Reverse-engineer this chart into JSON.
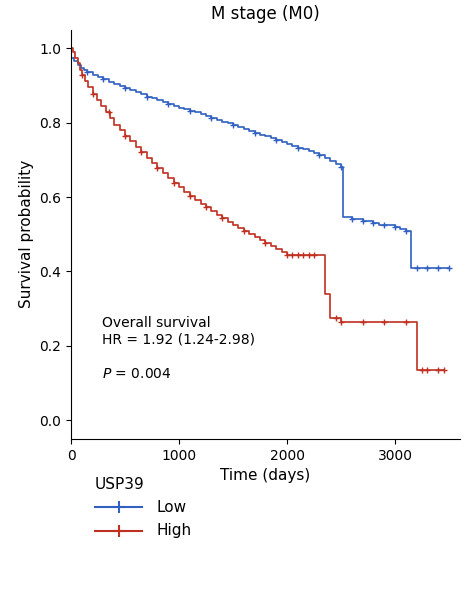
{
  "title": "M stage (M0)",
  "xlabel": "Time (days)",
  "ylabel": "Survival probability",
  "xlim": [
    0,
    3600
  ],
  "ylim": [
    -0.05,
    1.05
  ],
  "xticks": [
    0,
    1000,
    2000,
    3000
  ],
  "yticks": [
    0.0,
    0.2,
    0.4,
    0.6,
    0.8,
    1.0
  ],
  "legend_title": "USP39",
  "legend_labels": [
    "Low",
    "High"
  ],
  "low_color": "#3060c0",
  "high_color": "#c03020",
  "low_steps": [
    [
      0,
      0.975
    ],
    [
      30,
      0.965
    ],
    [
      60,
      0.955
    ],
    [
      90,
      0.948
    ],
    [
      120,
      0.942
    ],
    [
      150,
      0.936
    ],
    [
      200,
      0.928
    ],
    [
      250,
      0.922
    ],
    [
      300,
      0.916
    ],
    [
      350,
      0.91
    ],
    [
      400,
      0.905
    ],
    [
      450,
      0.898
    ],
    [
      500,
      0.893
    ],
    [
      550,
      0.887
    ],
    [
      600,
      0.882
    ],
    [
      650,
      0.876
    ],
    [
      700,
      0.87
    ],
    [
      750,
      0.865
    ],
    [
      800,
      0.86
    ],
    [
      850,
      0.855
    ],
    [
      900,
      0.85
    ],
    [
      950,
      0.845
    ],
    [
      1000,
      0.84
    ],
    [
      1050,
      0.836
    ],
    [
      1100,
      0.832
    ],
    [
      1150,
      0.828
    ],
    [
      1200,
      0.823
    ],
    [
      1250,
      0.818
    ],
    [
      1300,
      0.813
    ],
    [
      1350,
      0.808
    ],
    [
      1400,
      0.803
    ],
    [
      1450,
      0.798
    ],
    [
      1500,
      0.793
    ],
    [
      1550,
      0.788
    ],
    [
      1600,
      0.783
    ],
    [
      1650,
      0.778
    ],
    [
      1700,
      0.773
    ],
    [
      1750,
      0.768
    ],
    [
      1800,
      0.763
    ],
    [
      1850,
      0.758
    ],
    [
      1900,
      0.752
    ],
    [
      1950,
      0.747
    ],
    [
      2000,
      0.742
    ],
    [
      2050,
      0.737
    ],
    [
      2100,
      0.733
    ],
    [
      2150,
      0.728
    ],
    [
      2200,
      0.723
    ],
    [
      2250,
      0.718
    ],
    [
      2300,
      0.713
    ],
    [
      2350,
      0.706
    ],
    [
      2400,
      0.698
    ],
    [
      2450,
      0.69
    ],
    [
      2500,
      0.68
    ],
    [
      2520,
      0.545
    ],
    [
      2550,
      0.545
    ],
    [
      2600,
      0.54
    ],
    [
      2700,
      0.535
    ],
    [
      2750,
      0.535
    ],
    [
      2800,
      0.53
    ],
    [
      2850,
      0.525
    ],
    [
      2900,
      0.525
    ],
    [
      2950,
      0.525
    ],
    [
      3000,
      0.52
    ],
    [
      3050,
      0.515
    ],
    [
      3100,
      0.51
    ],
    [
      3150,
      0.41
    ],
    [
      3200,
      0.41
    ],
    [
      3300,
      0.41
    ],
    [
      3400,
      0.41
    ],
    [
      3500,
      0.41
    ]
  ],
  "high_steps": [
    [
      0,
      1.0
    ],
    [
      20,
      0.99
    ],
    [
      40,
      0.975
    ],
    [
      60,
      0.96
    ],
    [
      80,
      0.942
    ],
    [
      100,
      0.928
    ],
    [
      130,
      0.912
    ],
    [
      160,
      0.895
    ],
    [
      200,
      0.878
    ],
    [
      240,
      0.862
    ],
    [
      280,
      0.845
    ],
    [
      320,
      0.828
    ],
    [
      360,
      0.812
    ],
    [
      400,
      0.795
    ],
    [
      450,
      0.78
    ],
    [
      500,
      0.765
    ],
    [
      550,
      0.75
    ],
    [
      600,
      0.735
    ],
    [
      650,
      0.72
    ],
    [
      700,
      0.706
    ],
    [
      750,
      0.692
    ],
    [
      800,
      0.678
    ],
    [
      850,
      0.664
    ],
    [
      900,
      0.65
    ],
    [
      950,
      0.638
    ],
    [
      1000,
      0.626
    ],
    [
      1050,
      0.614
    ],
    [
      1100,
      0.602
    ],
    [
      1150,
      0.592
    ],
    [
      1200,
      0.582
    ],
    [
      1250,
      0.572
    ],
    [
      1300,
      0.562
    ],
    [
      1350,
      0.553
    ],
    [
      1400,
      0.543
    ],
    [
      1450,
      0.534
    ],
    [
      1500,
      0.525
    ],
    [
      1550,
      0.517
    ],
    [
      1600,
      0.509
    ],
    [
      1650,
      0.501
    ],
    [
      1700,
      0.493
    ],
    [
      1750,
      0.485
    ],
    [
      1800,
      0.477
    ],
    [
      1850,
      0.469
    ],
    [
      1900,
      0.461
    ],
    [
      1950,
      0.453
    ],
    [
      2000,
      0.445
    ],
    [
      2050,
      0.445
    ],
    [
      2100,
      0.445
    ],
    [
      2150,
      0.445
    ],
    [
      2200,
      0.445
    ],
    [
      2250,
      0.445
    ],
    [
      2300,
      0.445
    ],
    [
      2350,
      0.34
    ],
    [
      2400,
      0.275
    ],
    [
      2450,
      0.275
    ],
    [
      2500,
      0.265
    ],
    [
      2550,
      0.265
    ],
    [
      2600,
      0.265
    ],
    [
      2650,
      0.265
    ],
    [
      2700,
      0.265
    ],
    [
      2750,
      0.265
    ],
    [
      2800,
      0.265
    ],
    [
      2850,
      0.265
    ],
    [
      2900,
      0.265
    ],
    [
      2950,
      0.265
    ],
    [
      3000,
      0.265
    ],
    [
      3050,
      0.265
    ],
    [
      3100,
      0.265
    ],
    [
      3150,
      0.265
    ],
    [
      3200,
      0.135
    ],
    [
      3250,
      0.135
    ],
    [
      3300,
      0.135
    ],
    [
      3400,
      0.135
    ],
    [
      3450,
      0.135
    ]
  ],
  "low_censor_times": [
    150,
    300,
    500,
    700,
    900,
    1100,
    1300,
    1500,
    1700,
    1900,
    2100,
    2300,
    2500,
    2600,
    2700,
    2800,
    2900,
    3000,
    3100,
    3200,
    3300,
    3400,
    3500
  ],
  "high_censor_times": [
    100,
    200,
    350,
    500,
    650,
    800,
    950,
    1100,
    1250,
    1400,
    1600,
    1800,
    2000,
    2050,
    2100,
    2150,
    2200,
    2250,
    2450,
    2500,
    2700,
    2900,
    3100,
    3250,
    3300,
    3400,
    3450
  ]
}
